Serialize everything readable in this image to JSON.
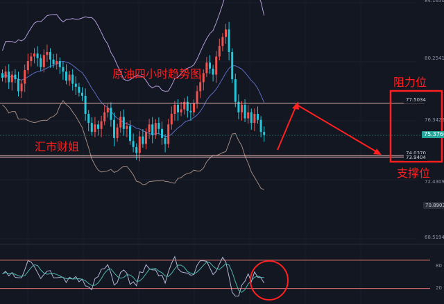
{
  "price_axis": {
    "ticks": [
      "84.1650",
      "80.2541",
      "76.3425",
      "72.4309",
      "68.5194"
    ],
    "current_price": "75.3760",
    "marker_price": "70.8903",
    "resistance_label": "77.5034",
    "support_label_1": "74.0370",
    "support_label_2": "73.9404"
  },
  "rsi_axis": {
    "ticks": [
      "80",
      "20"
    ]
  },
  "annotations": {
    "title": "原油四小时趋势图",
    "author": "汇市财姐",
    "resistance": "阻力位",
    "support": "支撑位"
  },
  "colors": {
    "background": "#131722",
    "up": "#ef5350",
    "down": "#26c6da",
    "annotation": "#ff2020",
    "current_price_bg": "#26a69a",
    "rsi_band": "#e07070"
  },
  "chart_data": {
    "type": "candlestick",
    "symbol_description": "原油四小时趋势图",
    "ylim": [
      68.5194,
      84.165
    ],
    "y_ticks": [
      84.165,
      80.2541,
      76.3425,
      72.4309,
      68.5194
    ],
    "current_price": 75.376,
    "levels": {
      "resistance": 77.5034,
      "support_upper": 74.037,
      "support_lower": 73.9404
    },
    "closes": [
      79.2,
      79.6,
      78.9,
      79.4,
      79.1,
      78.3,
      78.8,
      79.7,
      80.3,
      80.6,
      80.8,
      80.5,
      79.9,
      80.7,
      80.9,
      80.4,
      80.1,
      80.3,
      79.9,
      79.6,
      79.0,
      79.4,
      78.8,
      78.6,
      78.2,
      78.0,
      76.8,
      76.2,
      75.6,
      76.1,
      75.8,
      76.3,
      76.9,
      77.2,
      76.4,
      75.2,
      75.9,
      76.6,
      75.8,
      76.0,
      75.0,
      74.6,
      74.2,
      75.3,
      74.8,
      75.6,
      76.1,
      75.4,
      76.2,
      75.8,
      75.2,
      74.8,
      76.1,
      76.8,
      77.4,
      76.9,
      77.1,
      77.6,
      77.0,
      76.9,
      77.5,
      78.3,
      78.9,
      79.5,
      80.2,
      79.8,
      79.4,
      80.6,
      81.3,
      81.9,
      82.4,
      80.9,
      79.1,
      77.6,
      76.9,
      77.4,
      76.5,
      76.9,
      76.2,
      76.8,
      76.4,
      75.6,
      75.4
    ],
    "rsi": {
      "ylim": [
        0,
        100
      ],
      "bands": [
        80,
        20
      ]
    }
  }
}
